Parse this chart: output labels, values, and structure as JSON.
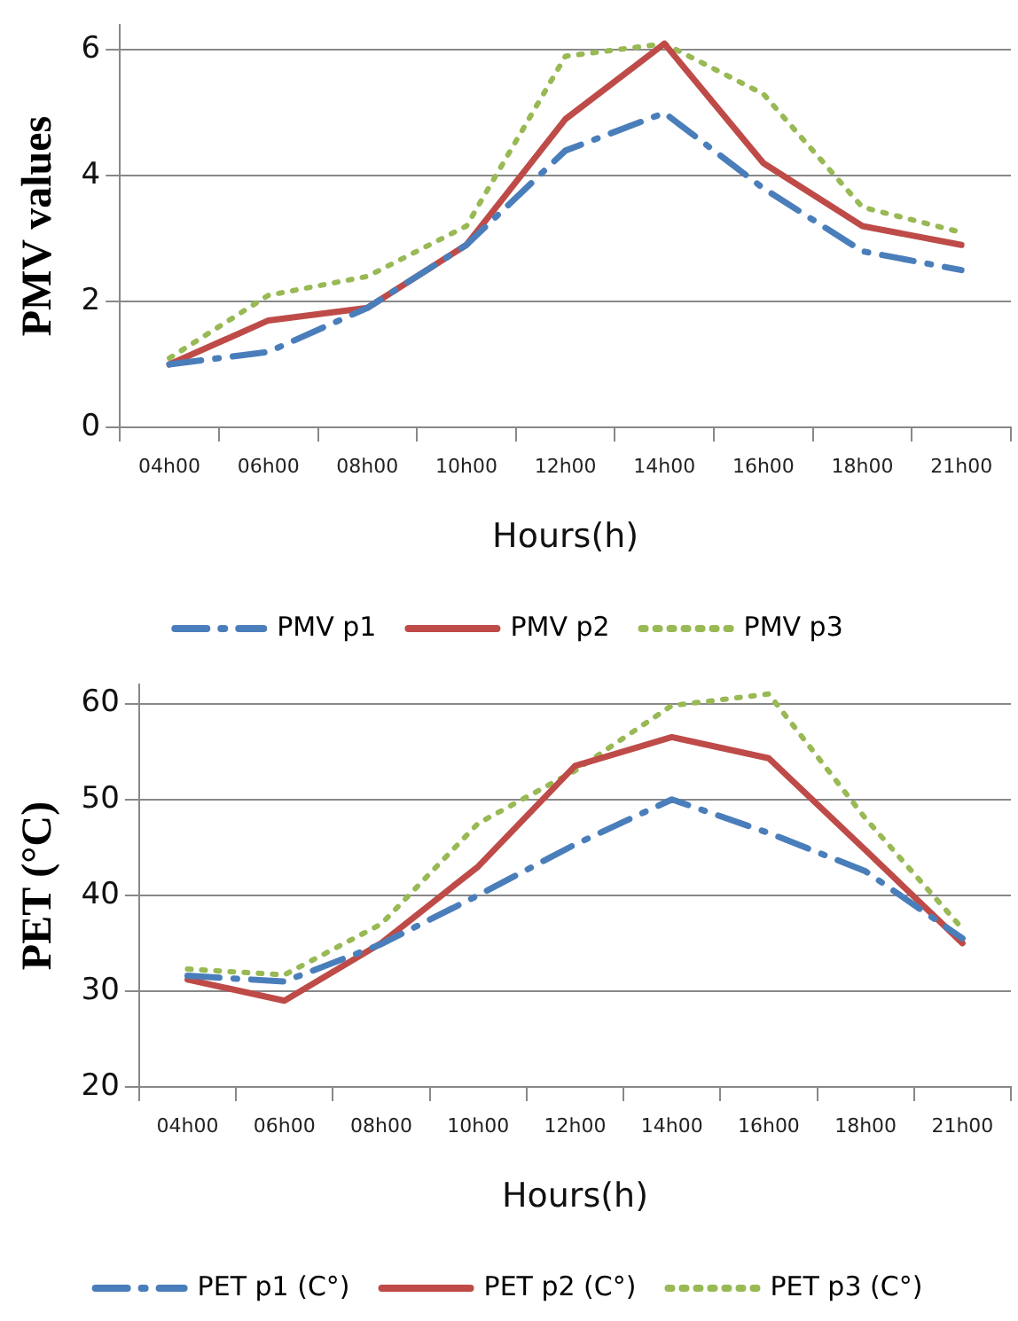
{
  "chart_data": [
    {
      "type": "line",
      "ylabel": "PMV values",
      "xlabel": "Hours(h)",
      "categories": [
        "04h00",
        "06h00",
        "08h00",
        "10h00",
        "12h00",
        "14h00",
        "16h00",
        "18h00",
        "21h00"
      ],
      "series": [
        {
          "name": "PMV p1",
          "color": "#4a7ebb",
          "line_style": "dashed",
          "values": [
            1.0,
            1.2,
            1.9,
            2.9,
            4.4,
            5.0,
            3.8,
            2.8,
            2.5
          ]
        },
        {
          "name": "PMV p2",
          "color": "#be4b48",
          "line_style": "solid",
          "values": [
            1.0,
            1.7,
            1.9,
            2.9,
            4.9,
            6.1,
            4.2,
            3.2,
            2.9
          ]
        },
        {
          "name": "PMV p3",
          "color": "#98b954",
          "line_style": "dotted",
          "values": [
            1.1,
            2.1,
            2.4,
            3.2,
            5.9,
            6.1,
            5.3,
            3.5,
            3.1
          ]
        }
      ],
      "ylim": [
        0,
        6.4
      ],
      "yticks": [
        0,
        2,
        4,
        6
      ],
      "grid": "y",
      "legend": "bottom",
      "marker": "none"
    },
    {
      "type": "line",
      "ylabel": "PET (°C)",
      "xlabel": "Hours(h)",
      "categories": [
        "04h00",
        "06h00",
        "08h00",
        "10h00",
        "12h00",
        "14h00",
        "16h00",
        "18h00",
        "21h00"
      ],
      "series": [
        {
          "name": "PET p1 (C°)",
          "color": "#4a7ebb",
          "line_style": "dashed",
          "values": [
            31.6,
            31.0,
            34.9,
            40.0,
            45.3,
            50.0,
            46.5,
            42.5,
            35.5
          ]
        },
        {
          "name": "PET p2 (C°)",
          "color": "#be4b48",
          "line_style": "solid",
          "values": [
            31.2,
            29.0,
            35.0,
            43.0,
            53.5,
            56.5,
            54.3,
            44.7,
            35.0
          ]
        },
        {
          "name": "PET p3 (C°)",
          "color": "#98b954",
          "line_style": "dotted",
          "values": [
            32.3,
            31.7,
            37.0,
            47.5,
            53.0,
            59.8,
            61.0,
            48.0,
            36.5
          ]
        }
      ],
      "ylim": [
        20,
        62
      ],
      "yticks": [
        20,
        30,
        40,
        50,
        60
      ],
      "grid": "y",
      "legend": "bottom",
      "marker": "none"
    }
  ]
}
